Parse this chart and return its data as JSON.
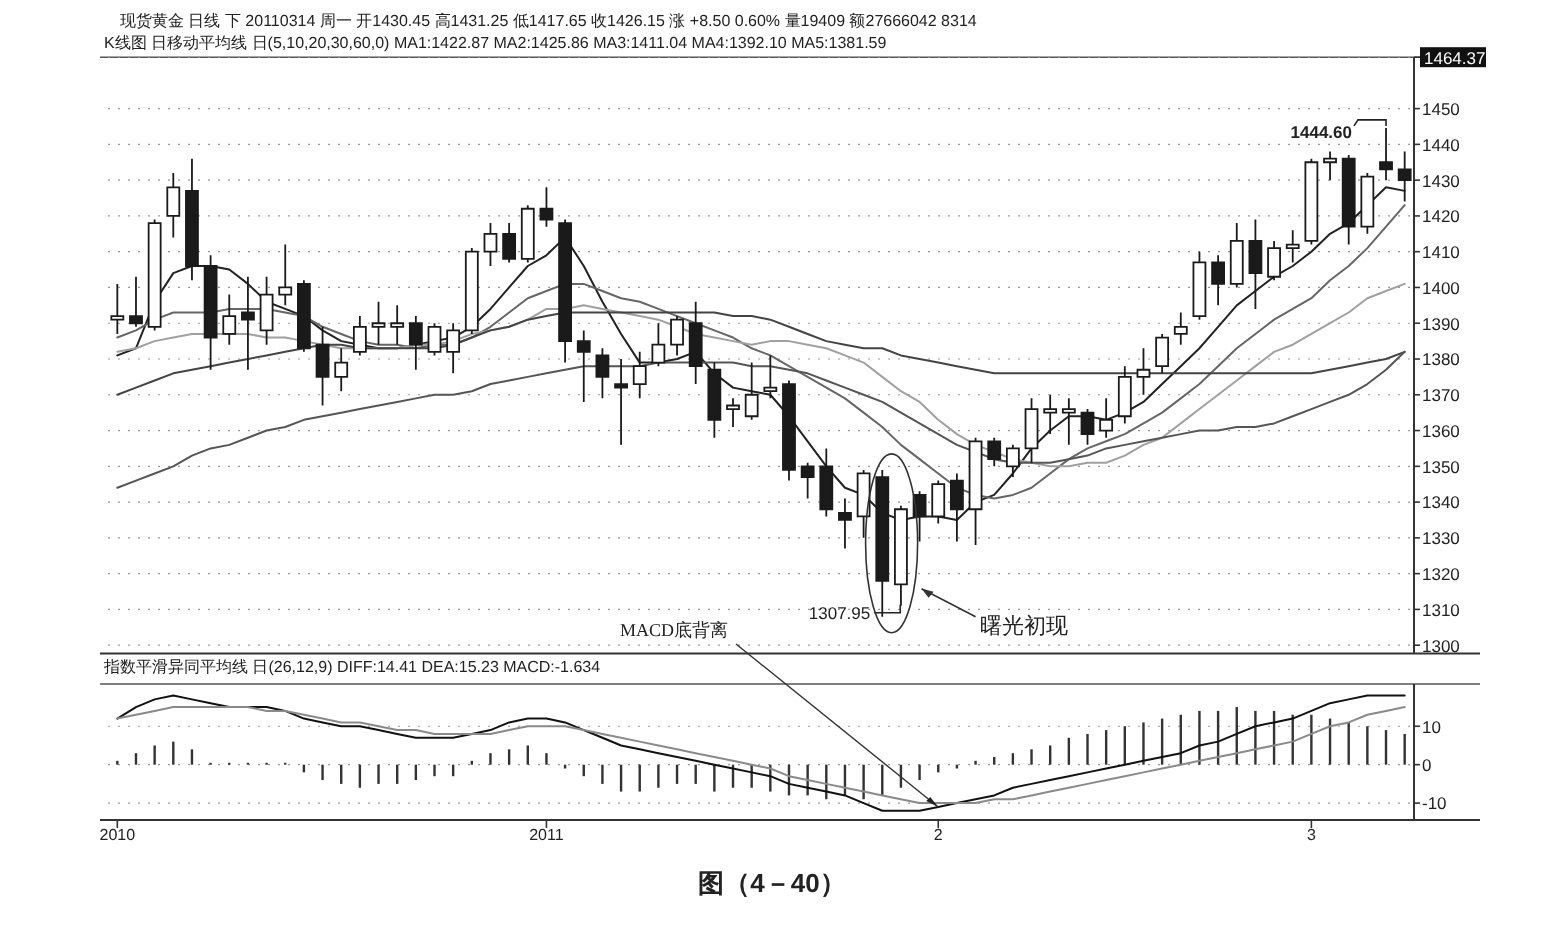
{
  "chart_data": [
    {
      "type": "candlestick",
      "title": "现货黄金 日线 下 20110314 周一 开1430.45 高1431.25 低1417.65 收1426.15 涨 +8.50 0.60% 量19409 额27666042 8314",
      "subtitle": "K线图 日移动平均线 日(5,10,20,30,60,0) MA1:1422.87 MA2:1425.86 MA3:1411.04 MA4:1392.10 MA5:1381.59",
      "categories": [
        null,
        null,
        null,
        null,
        null,
        null,
        null,
        null,
        null,
        null,
        null,
        null,
        null,
        null,
        null,
        null,
        null,
        null,
        null,
        null,
        null,
        null,
        null,
        null,
        null,
        null,
        null,
        null,
        null,
        null,
        null,
        null,
        null,
        null,
        null,
        null,
        null,
        null,
        null,
        null,
        null,
        null,
        null,
        null,
        null,
        null,
        null,
        null,
        null,
        null,
        null,
        null,
        null,
        null,
        null,
        null,
        null,
        null,
        null,
        null,
        null,
        null,
        null,
        null,
        null,
        null,
        null,
        null,
        null,
        null
      ],
      "ohlc": [
        [
          1391,
          1401,
          1387,
          1392
        ],
        [
          1392,
          1403,
          1389,
          1390
        ],
        [
          1389,
          1419,
          1388,
          1418
        ],
        [
          1420,
          1432,
          1414,
          1428
        ],
        [
          1427,
          1436,
          1402,
          1406
        ],
        [
          1406,
          1409,
          1377,
          1386
        ],
        [
          1387,
          1398,
          1384,
          1392
        ],
        [
          1393,
          1403,
          1377,
          1391
        ],
        [
          1388,
          1403,
          1384,
          1398
        ],
        [
          1398,
          1412,
          1395,
          1400
        ],
        [
          1401,
          1402,
          1382,
          1383
        ],
        [
          1384,
          1389,
          1367,
          1375
        ],
        [
          1375,
          1383,
          1371,
          1379
        ],
        [
          1382,
          1392,
          1381,
          1389
        ],
        [
          1389,
          1396,
          1384,
          1390
        ],
        [
          1389,
          1395,
          1384,
          1390
        ],
        [
          1390,
          1392,
          1377,
          1384
        ],
        [
          1382,
          1390,
          1381,
          1389
        ],
        [
          1382,
          1390,
          1376,
          1388
        ],
        [
          1388,
          1411,
          1387,
          1410
        ],
        [
          1410,
          1418,
          1406,
          1415
        ],
        [
          1415,
          1418,
          1407,
          1408
        ],
        [
          1408,
          1423,
          1407,
          1422
        ],
        [
          1422,
          1428,
          1417,
          1419
        ],
        [
          1418,
          1419,
          1379,
          1385
        ],
        [
          1385,
          1388,
          1368,
          1382
        ],
        [
          1381,
          1383,
          1369,
          1375
        ],
        [
          1373,
          1380,
          1356,
          1372
        ],
        [
          1373,
          1382,
          1369,
          1378
        ],
        [
          1379,
          1390,
          1378,
          1384
        ],
        [
          1384,
          1392,
          1381,
          1391
        ],
        [
          1390,
          1396,
          1373,
          1378
        ],
        [
          1377,
          1379,
          1358,
          1363
        ],
        [
          1366,
          1369,
          1361,
          1367
        ],
        [
          1364,
          1379,
          1363,
          1370
        ],
        [
          1371,
          1381,
          1369,
          1372
        ],
        [
          1373,
          1374,
          1346,
          1349
        ],
        [
          1350,
          1351,
          1341,
          1347
        ],
        [
          1350,
          1355,
          1336,
          1338
        ],
        [
          1337,
          1341,
          1327,
          1335
        ],
        [
          1336,
          1349,
          1330,
          1348
        ],
        [
          1347,
          1349,
          1307.95,
          1318
        ],
        [
          1317,
          1339,
          1311,
          1338
        ],
        [
          1342,
          1343,
          1329,
          1336
        ],
        [
          1336,
          1346,
          1334,
          1345
        ],
        [
          1346,
          1348,
          1329,
          1338
        ],
        [
          1338,
          1358,
          1328,
          1357
        ],
        [
          1357,
          1358,
          1350,
          1352
        ],
        [
          1350,
          1356,
          1347,
          1355
        ],
        [
          1355,
          1369,
          1351,
          1366
        ],
        [
          1365,
          1370,
          1359,
          1366
        ],
        [
          1365,
          1369,
          1356,
          1366
        ],
        [
          1365,
          1366,
          1356,
          1359
        ],
        [
          1360,
          1369,
          1358,
          1363
        ],
        [
          1364,
          1378,
          1362,
          1375
        ],
        [
          1375,
          1383,
          1370,
          1377
        ],
        [
          1378,
          1387,
          1376,
          1386
        ],
        [
          1387,
          1393,
          1384,
          1389
        ],
        [
          1392,
          1410,
          1391,
          1407
        ],
        [
          1407,
          1409,
          1395,
          1401
        ],
        [
          1401,
          1418,
          1400,
          1413
        ],
        [
          1413,
          1419,
          1394,
          1404
        ],
        [
          1403,
          1413,
          1402,
          1411
        ],
        [
          1411,
          1416,
          1407,
          1412
        ],
        [
          1413,
          1436,
          1412,
          1435
        ],
        [
          1435,
          1438,
          1430,
          1436
        ],
        [
          1436,
          1437,
          1412,
          1417
        ],
        [
          1417,
          1432,
          1415,
          1431
        ],
        [
          1435,
          1444.6,
          1430,
          1433
        ],
        [
          1433,
          1438,
          1424,
          1430
        ]
      ],
      "series": [
        {
          "type": "line",
          "color": "#222222",
          "values": [
            1381,
            1383,
            1396,
            1404,
            1406,
            1406,
            1405,
            1401,
            1396,
            1394,
            1392,
            1388,
            1385,
            1384,
            1383,
            1383,
            1384,
            1385,
            1386,
            1389,
            1394,
            1400,
            1406,
            1409,
            1414,
            1406,
            1396,
            1387,
            1379,
            1379,
            1380,
            1382,
            1376,
            1372,
            1371,
            1370,
            1364,
            1357,
            1350,
            1344,
            1342,
            1337,
            1335,
            1336,
            1336,
            1335,
            1340,
            1342,
            1348,
            1355,
            1360,
            1364,
            1364,
            1363,
            1365,
            1368,
            1373,
            1378,
            1383,
            1389,
            1395,
            1399,
            1403,
            1406,
            1410,
            1415,
            1418,
            1423,
            1428,
            1427
          ]
        },
        {
          "type": "line",
          "color": "#666666",
          "values": [
            1386,
            1388,
            1391,
            1393,
            1393,
            1393,
            1394,
            1394,
            1394,
            1393,
            1392,
            1389,
            1387,
            1385,
            1384,
            1384,
            1383,
            1384,
            1384,
            1386,
            1389,
            1393,
            1397,
            1399,
            1401,
            1401,
            1399,
            1397,
            1396,
            1394,
            1392,
            1390,
            1388,
            1386,
            1383,
            1381,
            1378,
            1375,
            1372,
            1369,
            1365,
            1361,
            1356,
            1352,
            1348,
            1344,
            1342,
            1341,
            1342,
            1344,
            1348,
            1352,
            1355,
            1357,
            1359,
            1362,
            1365,
            1369,
            1373,
            1378,
            1383,
            1387,
            1391,
            1394,
            1397,
            1402,
            1406,
            1411,
            1417,
            1423
          ]
        },
        {
          "type": "line",
          "color": "#a0a0a0",
          "values": [
            1382,
            1383,
            1385,
            1386,
            1387,
            1387,
            1387,
            1387,
            1386,
            1386,
            1385,
            1384,
            1383,
            1383,
            1383,
            1383,
            1384,
            1384,
            1385,
            1387,
            1388,
            1389,
            1391,
            1394,
            1394,
            1395,
            1394,
            1393,
            1392,
            1391,
            1389,
            1387,
            1386,
            1385,
            1384,
            1385,
            1385,
            1384,
            1383,
            1381,
            1379,
            1375,
            1371,
            1368,
            1363,
            1359,
            1356,
            1354,
            1352,
            1351,
            1350,
            1350,
            1351,
            1351,
            1353,
            1356,
            1358,
            1362,
            1366,
            1370,
            1374,
            1378,
            1382,
            1384,
            1387,
            1390,
            1393,
            1397,
            1399,
            1401
          ]
        },
        {
          "type": "line",
          "color": "#444444",
          "values": [
            1370,
            1372,
            1374,
            1376,
            1377,
            1378,
            1379,
            1380,
            1381,
            1382,
            1383,
            1384,
            1384,
            1383,
            1383,
            1383,
            1383,
            1383,
            1384,
            1386,
            1388,
            1389,
            1391,
            1392,
            1393,
            1393,
            1393,
            1393,
            1393,
            1393,
            1393,
            1393,
            1393,
            1392,
            1392,
            1391,
            1389,
            1387,
            1385,
            1384,
            1383,
            1383,
            1381,
            1380,
            1379,
            1378,
            1377,
            1376,
            1376,
            1376,
            1376,
            1376,
            1376,
            1376,
            1376,
            1376,
            1376,
            1376,
            1376,
            1376,
            1376,
            1376,
            1376,
            1376,
            1376,
            1377,
            1378,
            1379,
            1380,
            1382
          ]
        },
        {
          "type": "line",
          "color": "#555555",
          "values": [
            1344,
            1346,
            1348,
            1350,
            1353,
            1355,
            1356,
            1358,
            1360,
            1361,
            1363,
            1364,
            1365,
            1366,
            1367,
            1368,
            1369,
            1370,
            1370,
            1371,
            1373,
            1374,
            1375,
            1376,
            1377,
            1378,
            1378,
            1378,
            1378,
            1379,
            1379,
            1379,
            1379,
            1379,
            1378,
            1378,
            1377,
            1376,
            1374,
            1372,
            1370,
            1368,
            1365,
            1362,
            1359,
            1356,
            1354,
            1352,
            1351,
            1351,
            1351,
            1352,
            1353,
            1355,
            1356,
            1357,
            1358,
            1359,
            1360,
            1360,
            1361,
            1361,
            1362,
            1364,
            1366,
            1368,
            1370,
            1373,
            1377,
            1382
          ]
        }
      ],
      "ylim": [
        1297.7,
        1464.37
      ],
      "yticks": [
        1300,
        1310,
        1320,
        1330,
        1340,
        1350,
        1360,
        1370,
        1380,
        1390,
        1400,
        1410,
        1420,
        1430,
        1440,
        1450,
        1464.37
      ],
      "grid": "y",
      "marker": "none",
      "annotations": [
        "1307.95",
        "1444.60",
        "曙光初现"
      ]
    },
    {
      "type": "bar",
      "title": "指数平滑异同平均线 日(26,12,9) DIFF:14.41 DEA:15.23 MACD:-1.634",
      "categories": [
        "2010",
        null,
        null,
        null,
        null,
        null,
        null,
        null,
        null,
        null,
        null,
        null,
        null,
        null,
        null,
        null,
        null,
        null,
        null,
        null,
        null,
        null,
        null,
        "2011",
        null,
        null,
        null,
        null,
        null,
        null,
        null,
        null,
        null,
        null,
        null,
        null,
        null,
        null,
        null,
        null,
        null,
        null,
        null,
        null,
        "2",
        null,
        null,
        null,
        null,
        null,
        null,
        null,
        null,
        null,
        null,
        null,
        null,
        null,
        null,
        null,
        null,
        null,
        null,
        null,
        "3",
        null,
        null,
        null,
        null,
        null
      ],
      "series": [
        {
          "color": "#333333",
          "values": [
            1,
            3,
            5,
            6,
            4,
            0.5,
            0.5,
            0.5,
            0.5,
            0.5,
            -2,
            -4,
            -5,
            -6,
            -5,
            -5,
            -4,
            -3,
            -3,
            1,
            3,
            4,
            5,
            3,
            -1,
            -3,
            -5,
            -7,
            -7,
            -6,
            -5,
            -5,
            -7,
            -6,
            -6,
            -7,
            -8,
            -8,
            -9,
            -8,
            -9,
            -8,
            -6,
            -4,
            -2,
            -1,
            1,
            2,
            3,
            4,
            5,
            7,
            8,
            9,
            10,
            11,
            12,
            13,
            14,
            14,
            15,
            14,
            14,
            13,
            13,
            12,
            11,
            10,
            9,
            8
          ]
        },
        {
          "type": "line",
          "color": "#111111",
          "values": [
            12,
            15,
            17,
            18,
            17,
            16,
            15,
            15,
            15,
            14,
            12,
            11,
            10,
            10,
            9,
            8,
            7,
            7,
            7,
            8,
            9,
            11,
            12,
            12,
            11,
            9,
            7,
            5,
            4,
            3,
            2,
            1,
            0,
            -1,
            -2,
            -3,
            -5,
            -6,
            -7,
            -8,
            -10,
            -12,
            -12,
            -12,
            -11,
            -10,
            -9,
            -8,
            -6,
            -5,
            -4,
            -3,
            -2,
            -1,
            0,
            1,
            2,
            3,
            5,
            6,
            8,
            10,
            11,
            12,
            14,
            16,
            17,
            18,
            18,
            18
          ]
        },
        {
          "type": "line",
          "color": "#8a8a8a",
          "values": [
            12,
            13,
            14,
            15,
            15,
            15,
            15,
            15,
            14,
            14,
            13,
            12,
            11,
            11,
            10,
            9,
            9,
            8,
            8,
            8,
            8,
            9,
            10,
            10,
            10,
            9,
            8,
            7,
            6,
            5,
            4,
            3,
            2,
            1,
            0,
            -1,
            -3,
            -4,
            -5,
            -6,
            -7,
            -8,
            -9,
            -10,
            -10,
            -10,
            -10,
            -9,
            -9,
            -8,
            -7,
            -6,
            -5,
            -4,
            -3,
            -2,
            -1,
            0,
            1,
            2,
            3,
            4,
            5,
            6,
            8,
            10,
            11,
            13,
            14,
            15
          ]
        }
      ],
      "ylim": [
        -14.4,
        21
      ],
      "yticks": [
        -10,
        0,
        10
      ],
      "grid": "y",
      "marker": "none",
      "annotations": [
        {
          "text": "MACD底背离",
          "x": "2",
          "y": -11
        },
        "图（4－40）"
      ]
    }
  ]
}
